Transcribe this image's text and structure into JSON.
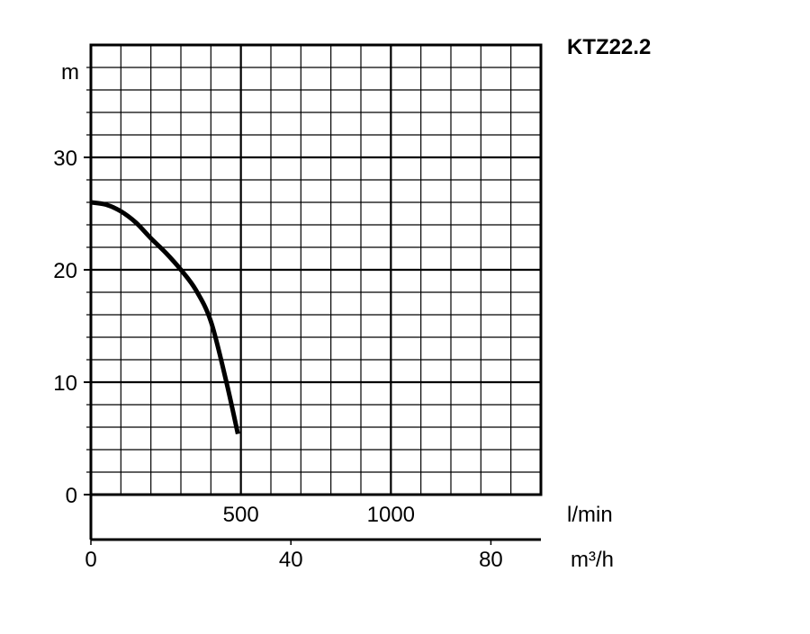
{
  "chart_data": {
    "type": "line",
    "title": "KTZ22.2",
    "ylabel": "m",
    "xlabel": "l/min",
    "x2label": "m³/h",
    "xlim": [
      0,
      1500
    ],
    "ylim": [
      0,
      40
    ],
    "x2lim": [
      0,
      90
    ],
    "grid": true,
    "x_minor_step": 100,
    "y_minor_step": 2,
    "x_ticks": [
      500,
      1000
    ],
    "x_tick_labels": [
      "500",
      "1000"
    ],
    "y_ticks": [
      0,
      10,
      20,
      30
    ],
    "y_tick_labels": [
      "0",
      "10",
      "20",
      "30"
    ],
    "x2_ticks": [
      0,
      40,
      80
    ],
    "x2_tick_labels": [
      "0",
      "40",
      "80"
    ],
    "series": [
      {
        "color": "#000000",
        "x": [
          0,
          50,
          100,
          150,
          200,
          250,
          300,
          350,
          400,
          450,
          490
        ],
        "y": [
          26.0,
          25.8,
          25.2,
          24.2,
          22.8,
          21.5,
          20.0,
          18.2,
          15.4,
          10.2,
          5.4
        ]
      }
    ]
  }
}
